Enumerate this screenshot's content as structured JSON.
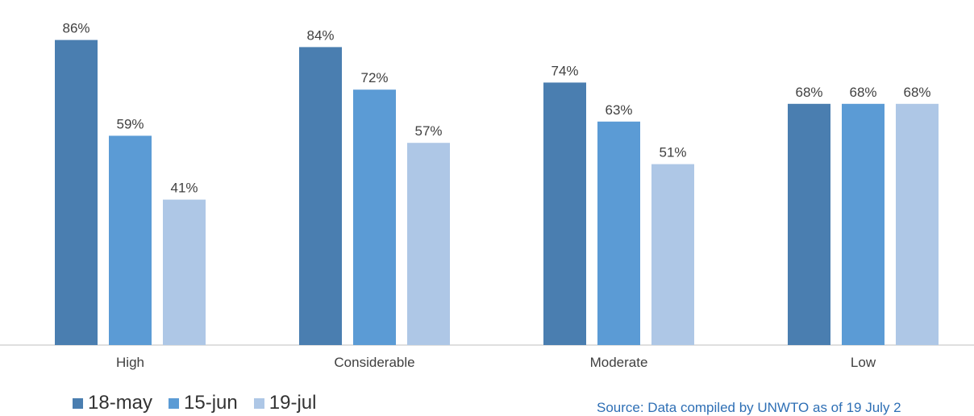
{
  "chart_data": {
    "type": "bar",
    "title": "",
    "categories": [
      "High",
      "Considerable",
      "Moderate",
      "Low"
    ],
    "series": [
      {
        "name": "18-may",
        "color": "#4A7EB0",
        "values": [
          86,
          84,
          74,
          68
        ]
      },
      {
        "name": "15-jun",
        "color": "#5B9BD5",
        "values": [
          59,
          72,
          63,
          68
        ]
      },
      {
        "name": "19-jul",
        "color": "#AEC7E6",
        "values": [
          41,
          57,
          51,
          68
        ]
      }
    ],
    "value_suffix": "%",
    "ylim": [
      0,
      100
    ],
    "grid": false,
    "legend": "bottom-left"
  },
  "source_note": "Source: Data compiled by UNWTO as of 19 July 2"
}
